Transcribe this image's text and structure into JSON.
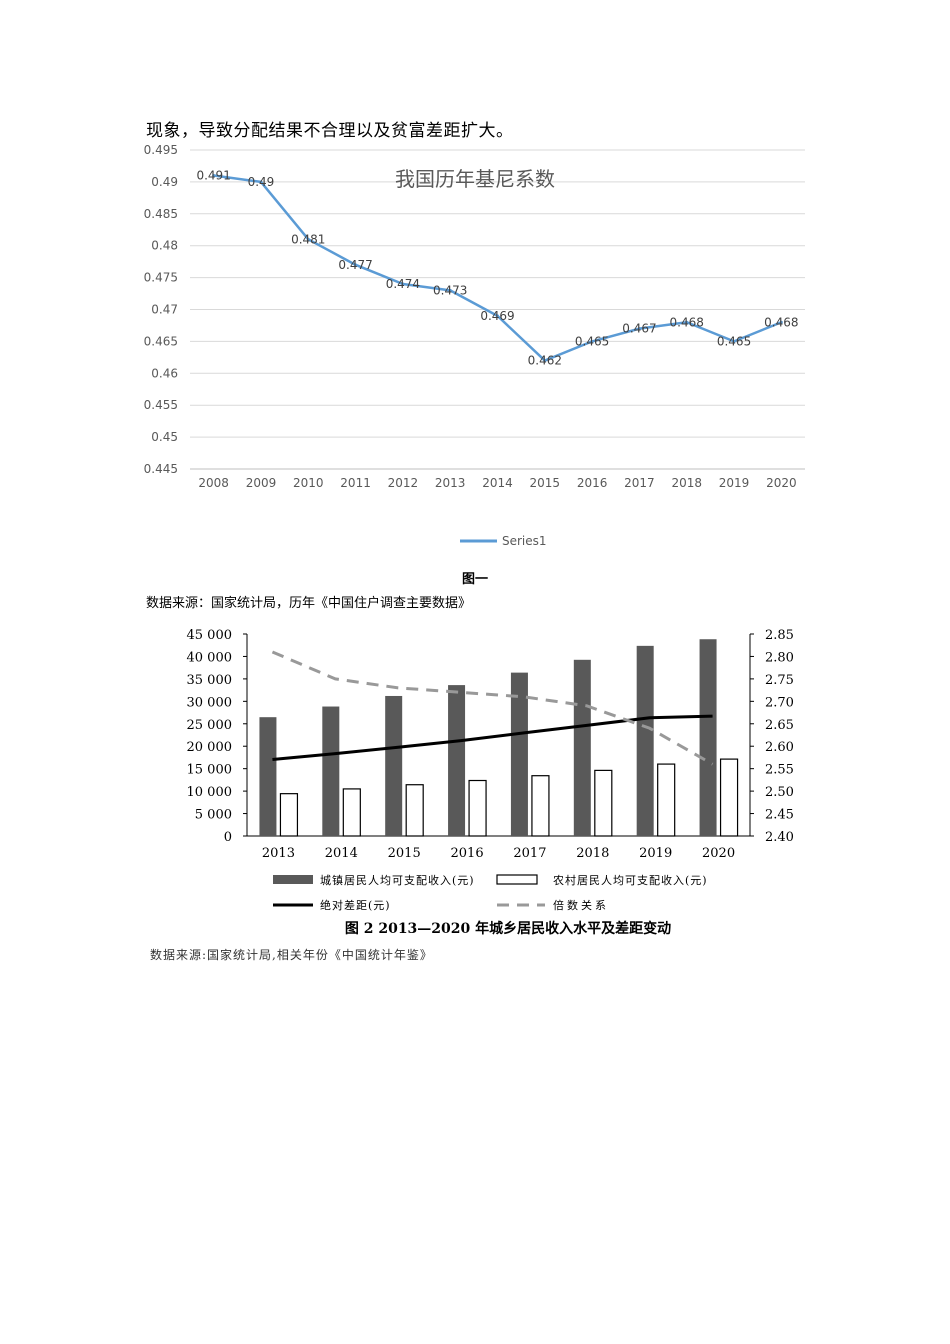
{
  "paragraph": "现象，导致分配结果不合理以及贫富差距扩大。",
  "figure1": {
    "caption": "图一",
    "source": "数据来源：国家统计局，历年《中国住户调查主要数据》"
  },
  "figure2": {
    "caption": "图 2  2013—2020 年城乡居民收入水平及差距变动",
    "source": "数据来源:国家统计局,相关年份《中国统计年鉴》"
  },
  "chart_data": [
    {
      "type": "line",
      "title": "我国历年基尼系数",
      "x": [
        "2008",
        "2009",
        "2010",
        "2011",
        "2012",
        "2013",
        "2014",
        "2015",
        "2016",
        "2017",
        "2018",
        "2019",
        "2020"
      ],
      "series": [
        {
          "name": "Series1",
          "values": [
            0.491,
            0.49,
            0.481,
            0.477,
            0.474,
            0.473,
            0.469,
            0.462,
            0.465,
            0.467,
            0.468,
            0.465,
            0.468
          ]
        }
      ],
      "data_labels": [
        "0.491",
        "0.49",
        "0.481",
        "0.477",
        "0.474",
        "0.473",
        "0.469",
        "0.462",
        "0.465",
        "0.467",
        "0.468",
        "0.465",
        "0.468"
      ],
      "ylim": [
        0.445,
        0.495
      ],
      "yticks": [
        "0.445",
        "0.45",
        "0.455",
        "0.46",
        "0.465",
        "0.47",
        "0.475",
        "0.48",
        "0.485",
        "0.49",
        "0.495"
      ],
      "grid": true,
      "legend": "bottom",
      "color": "#5b9bd5"
    },
    {
      "type": "bar",
      "categories": [
        "2013",
        "2014",
        "2015",
        "2016",
        "2017",
        "2018",
        "2019",
        "2020"
      ],
      "series": [
        {
          "name": "城镇居民人均可支配收入(元)",
          "kind": "bar",
          "axis": "left",
          "color": "#595959",
          "values": [
            26467,
            28844,
            31195,
            33616,
            36396,
            39251,
            42359,
            43834
          ]
        },
        {
          "name": "农村居民人均可支配收入(元)",
          "kind": "bar",
          "axis": "left",
          "color": "#ffffff",
          "values": [
            9430,
            10489,
            11422,
            12363,
            13432,
            14617,
            16021,
            17131
          ]
        },
        {
          "name": "绝对差距(元)",
          "kind": "line",
          "axis": "left",
          "color": "#000000",
          "values": [
            17037,
            18355,
            19773,
            21253,
            22964,
            24634,
            26338,
            26703
          ]
        },
        {
          "name": "倍数关系",
          "kind": "dashed-line",
          "axis": "right",
          "color": "#999999",
          "values": [
            2.81,
            2.75,
            2.73,
            2.72,
            2.71,
            2.69,
            2.64,
            2.56
          ]
        }
      ],
      "ylim_left": [
        0,
        45000
      ],
      "yticks_left": [
        "0",
        "5 000",
        "10 000",
        "15 000",
        "20 000",
        "25 000",
        "30 000",
        "35 000",
        "40 000",
        "45 000"
      ],
      "ylim_right": [
        2.4,
        2.85
      ],
      "yticks_right": [
        "2.40",
        "2.45",
        "2.50",
        "2.55",
        "2.60",
        "2.65",
        "2.70",
        "2.75",
        "2.80",
        "2.85"
      ],
      "grid": false,
      "legend": "bottom"
    }
  ]
}
